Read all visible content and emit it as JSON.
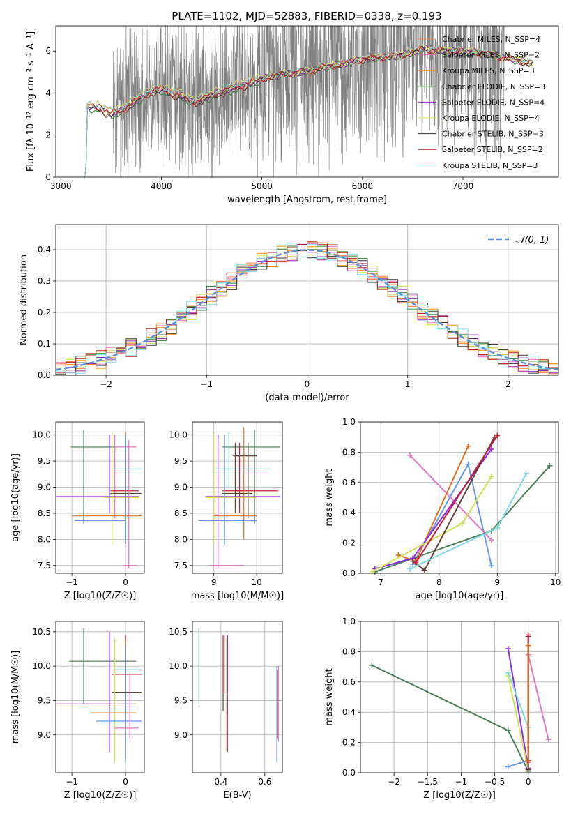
{
  "figure_title": "PLATE=1102, MJD=52883, FIBERID=0338, z=0.193",
  "colors": {
    "data_spectrum": "#808080",
    "normal_curve": "#5b8fd6",
    "models": [
      "#ff7f50",
      "#e377c2",
      "#ff8c00",
      "#2e7d32",
      "#8e24aa",
      "#d4e157",
      "#333333",
      "#b71c1c",
      "#80deea"
    ],
    "lines_ax3": [
      "#6495ed",
      "#e377c2",
      "#e07020",
      "#4a7c59",
      "#8a2be2",
      "#d4e157",
      "#5d4037",
      "#c41e3a",
      "#80d8e0"
    ]
  },
  "chart_data": [
    {
      "type": "line",
      "id": "spectrum",
      "title": "PLATE=1102, MJD=52883, FIBERID=0338, z=0.193",
      "xlabel": "wavelength [Angstrom, rest frame]",
      "ylabel": "Flux [fλ 10⁻¹⁷ erg cm⁻² s⁻¹ A⁻¹]",
      "xlim": [
        2950,
        7950
      ],
      "ylim": [
        0,
        7.2
      ],
      "xticks": [
        3000,
        4000,
        5000,
        6000,
        7000
      ],
      "yticks": [
        0,
        2,
        4,
        6
      ],
      "legend": "top-right",
      "series": [
        {
          "name": "Chabrier MILES, N_SSP=4"
        },
        {
          "name": "Salpeter MILES, N_SSP=2"
        },
        {
          "name": "Kroupa MILES, N_SSP=3"
        },
        {
          "name": "Chabrier ELODIE, N_SSP=3"
        },
        {
          "name": "Salpeter ELODIE, N_SSP=4"
        },
        {
          "name": "Kroupa ELODIE, N_SSP=4"
        },
        {
          "name": "Chabrier STELIB, N_SSP=3"
        },
        {
          "name": "Salpeter STELIB, N_SSP=2"
        },
        {
          "name": "Kroupa STELIB, N_SSP=3"
        }
      ],
      "model_curve": {
        "x": [
          3250,
          3260,
          3300,
          3400,
          3500,
          3600,
          3700,
          3800,
          3900,
          4000,
          4100,
          4200,
          4300,
          4400,
          4500,
          4600,
          4700,
          4800,
          4900,
          5000,
          5200,
          5400,
          5600,
          5800,
          6000,
          6200,
          6400,
          6600,
          6800,
          7000,
          7200,
          7400,
          7600,
          7700
        ],
        "y": [
          0,
          3.4,
          3.35,
          3.3,
          3.0,
          3.2,
          3.5,
          3.8,
          4.1,
          4.2,
          4.0,
          3.9,
          3.6,
          3.7,
          3.9,
          4.1,
          4.2,
          4.4,
          4.5,
          4.7,
          4.9,
          5.0,
          5.2,
          5.4,
          5.6,
          5.7,
          5.8,
          6.1,
          6.0,
          6.0,
          5.9,
          5.7,
          5.5,
          5.4
        ]
      }
    },
    {
      "type": "histogram",
      "id": "residuals",
      "xlabel": "(data-model)/error",
      "ylabel": "Normed distribution",
      "xlim": [
        -2.5,
        2.5
      ],
      "ylim": [
        0,
        0.48
      ],
      "xticks": [
        -2,
        -1,
        0,
        1,
        2
      ],
      "yticks": [
        0.0,
        0.1,
        0.2,
        0.3,
        0.4
      ],
      "legend_label": "𝒩(0, 1)",
      "legend": "top-right",
      "bin_width": 0.1
    },
    {
      "type": "errorbar",
      "id": "age_vs_Z",
      "xlabel": "Z [log10(Z/Z☉)]",
      "ylabel": "age [log10(age/yr)]",
      "xlim": [
        -1.3,
        0.35
      ],
      "ylim": [
        7.35,
        10.25
      ],
      "xticks": [
        -1,
        0
      ],
      "yticks": [
        7.5,
        8.0,
        8.5,
        9.0,
        9.5,
        10.0
      ],
      "points": [
        {
          "x": 0.0,
          "y": 9.97,
          "xlo": 0.0,
          "xhi": 0.0,
          "ylo": 7.92,
          "yhi": 10.05,
          "c": 6
        },
        {
          "x": -0.78,
          "y": 9.77,
          "xlo": -1.02,
          "xhi": 0.2,
          "ylo": 8.3,
          "yhi": 10.1,
          "c": 3
        },
        {
          "x": -0.2,
          "y": 9.77,
          "xlo": -0.2,
          "xhi": 0.2,
          "ylo": 8.4,
          "yhi": 10.0,
          "c": 1
        },
        {
          "x": 0.0,
          "y": 9.35,
          "xlo": -0.25,
          "xhi": 0.3,
          "ylo": 9.0,
          "yhi": 10.0,
          "c": 8
        },
        {
          "x": 0.0,
          "y": 8.93,
          "xlo": -0.28,
          "xhi": 0.25,
          "ylo": 8.5,
          "yhi": 9.7,
          "c": 7
        },
        {
          "x": 0.0,
          "y": 8.88,
          "xlo": -0.28,
          "xhi": 0.3,
          "ylo": 8.5,
          "yhi": 9.9,
          "c": 6
        },
        {
          "x": -0.3,
          "y": 8.82,
          "xlo": -1.3,
          "xhi": 0.25,
          "ylo": 8.5,
          "yhi": 10.0,
          "c": 4
        },
        {
          "x": -0.25,
          "y": 8.8,
          "xlo": -0.4,
          "xhi": 0.25,
          "ylo": 7.9,
          "yhi": 10.05,
          "c": 5
        },
        {
          "x": 0.0,
          "y": 8.45,
          "xlo": -1.0,
          "xhi": 0.3,
          "ylo": 8.0,
          "yhi": 10.05,
          "c": 2
        },
        {
          "x": 0.0,
          "y": 8.36,
          "xlo": -0.95,
          "xhi": 0.0,
          "ylo": 7.95,
          "yhi": 10.0,
          "c": 0
        },
        {
          "x": 0.06,
          "y": 7.5,
          "xlo": -0.05,
          "xhi": 0.2,
          "ylo": 7.45,
          "yhi": 9.9,
          "c": 1
        }
      ]
    },
    {
      "type": "errorbar",
      "id": "age_vs_mass",
      "xlabel": "mass [log10(M/M☉)]",
      "ylabel": "",
      "xlim": [
        8.5,
        10.6
      ],
      "ylim": [
        7.35,
        10.25
      ],
      "xticks": [
        9,
        10
      ],
      "yticks": [
        7.5,
        8.0,
        8.5,
        9.0,
        9.5,
        10.0
      ],
      "points": [
        {
          "x": 9.95,
          "y": 9.77,
          "xlo": 9.2,
          "xhi": 10.55,
          "ylo": 8.3,
          "yhi": 10.1,
          "c": 3
        },
        {
          "x": 9.8,
          "y": 9.6,
          "xlo": 9.45,
          "xhi": 10.0,
          "ylo": 8.4,
          "yhi": 9.85,
          "c": 6
        },
        {
          "x": 9.35,
          "y": 9.35,
          "xlo": 9.0,
          "xhi": 10.3,
          "ylo": 9.0,
          "yhi": 10.05,
          "c": 8
        },
        {
          "x": 9.6,
          "y": 8.93,
          "xlo": 9.2,
          "xhi": 10.5,
          "ylo": 8.5,
          "yhi": 9.85,
          "c": 7
        },
        {
          "x": 9.5,
          "y": 8.88,
          "xlo": 9.2,
          "xhi": 9.9,
          "ylo": 8.5,
          "yhi": 9.85,
          "c": 6
        },
        {
          "x": 9.1,
          "y": 8.82,
          "xlo": 8.8,
          "xhi": 10.55,
          "ylo": 8.5,
          "yhi": 10.0,
          "c": 4
        },
        {
          "x": 9.0,
          "y": 8.8,
          "xlo": 8.8,
          "xhi": 10.0,
          "ylo": 7.9,
          "yhi": 10.05,
          "c": 5
        },
        {
          "x": 9.7,
          "y": 8.45,
          "xlo": 9.0,
          "xhi": 10.0,
          "ylo": 8.0,
          "yhi": 10.15,
          "c": 2
        },
        {
          "x": 9.25,
          "y": 8.36,
          "xlo": 8.65,
          "xhi": 10.0,
          "ylo": 7.9,
          "yhi": 10.0,
          "c": 0
        },
        {
          "x": 9.1,
          "y": 7.5,
          "xlo": 8.9,
          "xhi": 9.7,
          "ylo": 7.45,
          "yhi": 9.95,
          "c": 1
        }
      ]
    },
    {
      "type": "line",
      "id": "massweight_vs_age",
      "xlabel": "age [log10(age/yr)]",
      "ylabel": "mass weight",
      "xlim": [
        6.65,
        10.05
      ],
      "ylim": [
        0,
        1.0
      ],
      "xticks": [
        7,
        8,
        9,
        10
      ],
      "yticks": [
        0.0,
        0.2,
        0.4,
        0.6,
        0.8,
        1.0
      ],
      "lines": [
        {
          "c": 0,
          "x": [
            7.55,
            8.5,
            8.9
          ],
          "y": [
            0.06,
            0.72,
            0.05
          ]
        },
        {
          "c": 1,
          "x": [
            7.5,
            8.9
          ],
          "y": [
            0.78,
            0.22
          ]
        },
        {
          "c": 2,
          "x": [
            7.3,
            7.6,
            8.5
          ],
          "y": [
            0.12,
            0.08,
            0.84
          ]
        },
        {
          "c": 3,
          "x": [
            6.9,
            8.9,
            9.9
          ],
          "y": [
            0.01,
            0.28,
            0.71
          ]
        },
        {
          "c": 4,
          "x": [
            6.9,
            7.55,
            8.9
          ],
          "y": [
            0.03,
            0.1,
            0.82
          ]
        },
        {
          "c": 5,
          "x": [
            6.85,
            8.4,
            8.9
          ],
          "y": [
            0.01,
            0.33,
            0.64
          ]
        },
        {
          "c": 6,
          "x": [
            7.55,
            7.75,
            8.95
          ],
          "y": [
            0.08,
            0.02,
            0.9
          ]
        },
        {
          "c": 7,
          "x": [
            7.6,
            9.0
          ],
          "y": [
            0.07,
            0.91
          ]
        },
        {
          "c": 8,
          "x": [
            7.5,
            9.0,
            9.5
          ],
          "y": [
            0.03,
            0.3,
            0.66
          ]
        }
      ]
    },
    {
      "type": "errorbar",
      "id": "mass_vs_Z",
      "xlabel": "Z [log10(Z/Z☉)]",
      "ylabel": "mass [log10(M/M☉)]",
      "xlim": [
        -1.3,
        0.35
      ],
      "ylim": [
        8.45,
        10.65
      ],
      "xticks": [
        -1,
        0
      ],
      "yticks": [
        9.0,
        9.5,
        10.0,
        10.5
      ],
      "points": [
        {
          "x": -0.78,
          "y": 10.07,
          "xlo": -1.05,
          "xhi": 0.2,
          "ylo": 9.45,
          "yhi": 10.55,
          "c": 3
        },
        {
          "x": 0.0,
          "y": 9.95,
          "xlo": -0.2,
          "xhi": 0.3,
          "ylo": 9.2,
          "yhi": 10.45,
          "c": 8
        },
        {
          "x": 0.0,
          "y": 9.88,
          "xlo": -0.25,
          "xhi": 0.3,
          "ylo": 9.3,
          "yhi": 10.45,
          "c": 7
        },
        {
          "x": 0.0,
          "y": 9.62,
          "xlo": -0.25,
          "xhi": 0.3,
          "ylo": 9.1,
          "yhi": 10.3,
          "c": 6
        },
        {
          "x": -0.3,
          "y": 9.45,
          "xlo": -1.3,
          "xhi": 0.2,
          "ylo": 8.75,
          "yhi": 10.5,
          "c": 4
        },
        {
          "x": -0.2,
          "y": 9.45,
          "xlo": -0.25,
          "xhi": 0.2,
          "ylo": 8.6,
          "yhi": 10.4,
          "c": 5
        },
        {
          "x": 0.0,
          "y": 9.32,
          "xlo": -0.65,
          "xhi": 0.2,
          "ylo": 8.65,
          "yhi": 10.4,
          "c": 2
        },
        {
          "x": 0.0,
          "y": 9.2,
          "xlo": -0.55,
          "xhi": 0.3,
          "ylo": 8.6,
          "yhi": 10.3,
          "c": 0
        },
        {
          "x": 0.08,
          "y": 9.1,
          "xlo": -0.2,
          "xhi": 0.25,
          "ylo": 8.95,
          "yhi": 9.9,
          "c": 1
        }
      ]
    },
    {
      "type": "errorbar",
      "id": "mass_vs_EBV",
      "xlabel": "E(B-V)",
      "ylabel": "",
      "xlim": [
        0.27,
        0.68
      ],
      "ylim": [
        8.45,
        10.65
      ],
      "xticks": [
        0.2,
        0.4,
        0.6
      ],
      "yticks": [
        9.0,
        9.5,
        10.0,
        10.5
      ],
      "points": [
        {
          "x": 0.3,
          "y": 10.1,
          "xlo": 0.3,
          "xhi": 0.3,
          "ylo": 9.45,
          "yhi": 10.55,
          "c": 3
        },
        {
          "x": 0.41,
          "y": 10.0,
          "xlo": 0.41,
          "xhi": 0.41,
          "ylo": 9.35,
          "yhi": 10.45,
          "c": 6
        },
        {
          "x": 0.415,
          "y": 10.0,
          "xlo": 0.415,
          "xhi": 0.415,
          "ylo": 9.6,
          "yhi": 10.45,
          "c": 7
        },
        {
          "x": 0.43,
          "y": 9.7,
          "xlo": 0.43,
          "xhi": 0.43,
          "ylo": 8.75,
          "yhi": 10.45,
          "c": 4
        },
        {
          "x": 0.425,
          "y": 9.5,
          "xlo": 0.425,
          "xhi": 0.425,
          "ylo": 8.75,
          "yhi": 10.4,
          "c": 5
        },
        {
          "x": 0.655,
          "y": 9.5,
          "xlo": 0.655,
          "xhi": 0.655,
          "ylo": 8.6,
          "yhi": 10.0,
          "c": 0
        },
        {
          "x": 0.66,
          "y": 9.5,
          "xlo": 0.66,
          "xhi": 0.66,
          "ylo": 8.95,
          "yhi": 9.95,
          "c": 2
        },
        {
          "x": 0.662,
          "y": 9.6,
          "xlo": 0.662,
          "xhi": 0.662,
          "ylo": 8.9,
          "yhi": 10.0,
          "c": 1
        }
      ]
    },
    {
      "type": "line",
      "id": "massweight_vs_Z",
      "xlabel": "Z [log10(Z/Z☉)]",
      "ylabel": "mass weight",
      "xlim": [
        -2.5,
        0.45
      ],
      "ylim": [
        0,
        1.0
      ],
      "xticks": [
        -2.0,
        -1.5,
        -1.0,
        -0.5,
        0.0
      ],
      "yticks": [
        0.0,
        0.2,
        0.4,
        0.6,
        0.8,
        1.0
      ],
      "lines": [
        {
          "c": 3,
          "x": [
            -2.33,
            -0.3,
            0.0
          ],
          "y": [
            0.71,
            0.28,
            0.01
          ]
        },
        {
          "c": 0,
          "x": [
            -0.3,
            0.0
          ],
          "y": [
            0.04,
            0.08
          ]
        },
        {
          "c": 4,
          "x": [
            -0.3,
            0.0
          ],
          "y": [
            0.82,
            0.03
          ]
        },
        {
          "c": 5,
          "x": [
            -0.3,
            0.0
          ],
          "y": [
            0.64,
            0.02
          ]
        },
        {
          "c": 8,
          "x": [
            -0.3,
            0.0
          ],
          "y": [
            0.66,
            0.3
          ]
        },
        {
          "c": 1,
          "x": [
            0.0,
            0.3
          ],
          "y": [
            0.78,
            0.22
          ]
        },
        {
          "c": 6,
          "x": [
            0.0,
            0.0
          ],
          "y": [
            0.9,
            0.02
          ]
        },
        {
          "c": 7,
          "x": [
            0.0,
            0.0
          ],
          "y": [
            0.91,
            0.07
          ]
        },
        {
          "c": 2,
          "x": [
            0.0,
            0.0
          ],
          "y": [
            0.84,
            0.08
          ]
        }
      ]
    }
  ]
}
